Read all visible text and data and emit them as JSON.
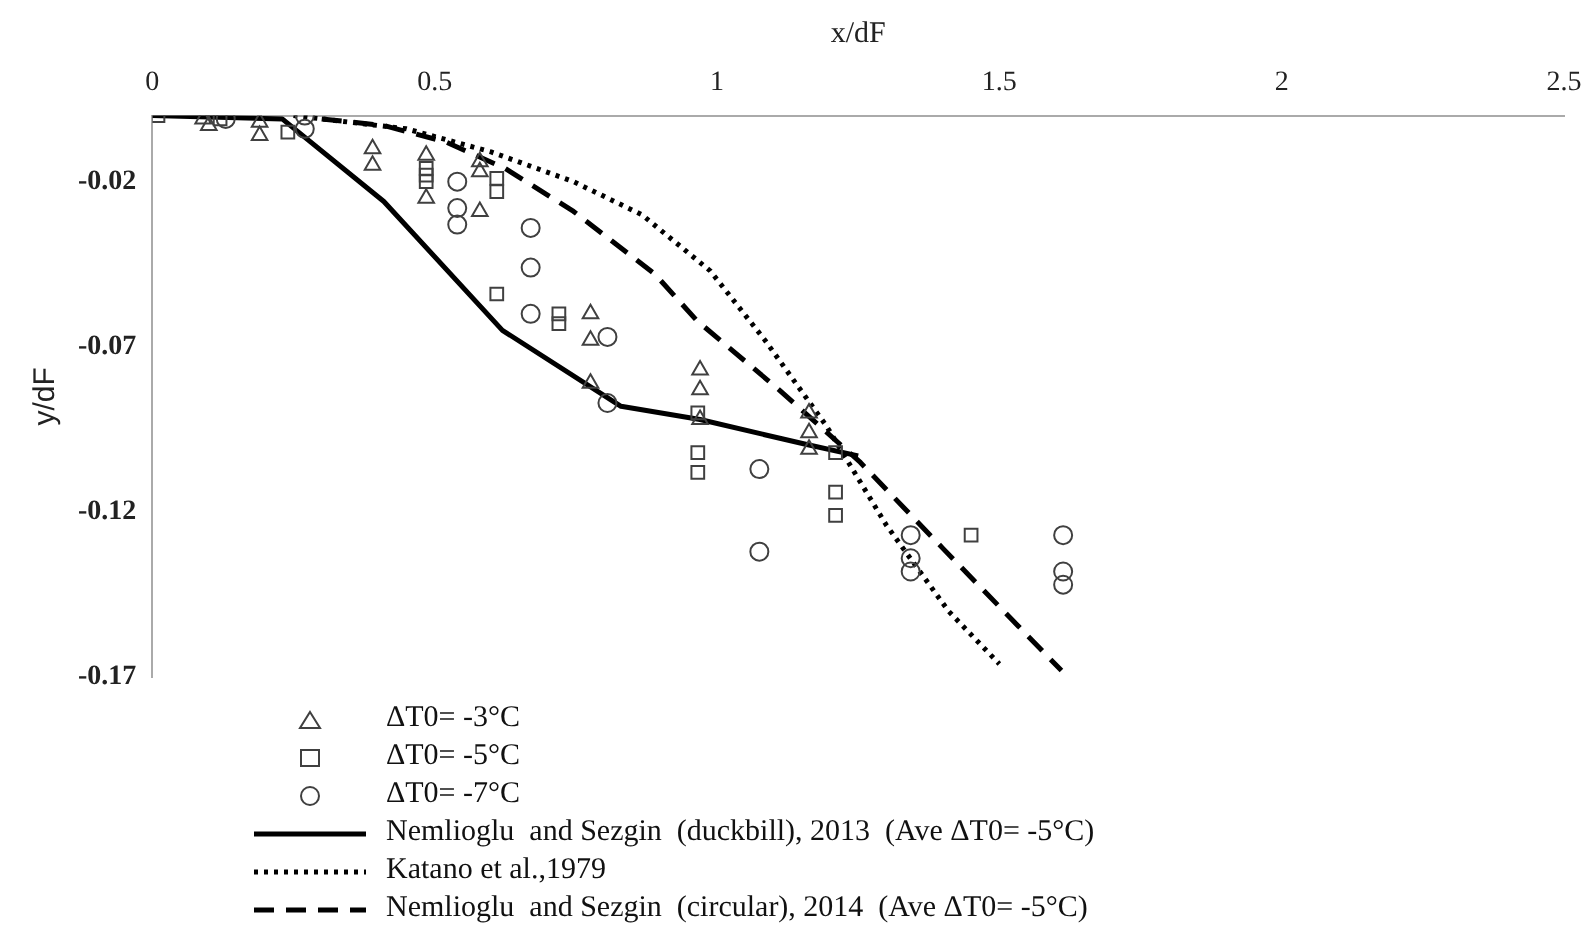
{
  "chart_data": {
    "type": "scatter",
    "xlabel": "x/dF",
    "ylabel": "y/dF",
    "xlim": [
      0,
      2.5
    ],
    "xticks": [
      0,
      0.5,
      1,
      1.5,
      2,
      2.5
    ],
    "ylim": [
      -0.17,
      0
    ],
    "yticks": [
      -0.02,
      -0.07,
      -0.12,
      -0.17
    ],
    "grid": false,
    "legend": "bottom left",
    "series": [
      {
        "name": "ΔT0= -3°C",
        "marker": "triangle",
        "color": "#404040",
        "x": [
          0.09,
          0.1,
          0.19,
          0.19,
          0.39,
          0.39,
          0.485,
          0.485,
          0.58,
          0.58,
          0.58,
          0.776,
          0.776,
          0.776,
          0.97,
          0.97,
          0.97,
          1.163,
          1.163,
          1.163
        ],
        "values": [
          -0.001,
          -0.003,
          -0.002,
          -0.006,
          -0.01,
          -0.015,
          -0.012,
          -0.025,
          -0.014,
          -0.017,
          -0.029,
          -0.06,
          -0.068,
          -0.081,
          -0.077,
          -0.083,
          -0.092,
          -0.09,
          -0.096,
          -0.101
        ]
      },
      {
        "name": "ΔT0= -5°C",
        "marker": "square",
        "color": "#404040",
        "x": [
          0.01,
          0.12,
          0.24,
          0.485,
          0.485,
          0.485,
          0.61,
          0.61,
          0.61,
          0.72,
          0.72,
          0.966,
          0.966,
          0.966,
          1.21,
          1.21,
          1.21,
          1.45
        ],
        "values": [
          0,
          -0.001,
          -0.005,
          -0.016,
          -0.018,
          -0.02,
          -0.019,
          -0.023,
          -0.054,
          -0.06,
          -0.063,
          -0.09,
          -0.102,
          -0.108,
          -0.102,
          -0.114,
          -0.121,
          -0.127
        ]
      },
      {
        "name": "ΔT0= -7°C",
        "marker": "circle",
        "color": "#404040",
        "x": [
          0.13,
          0.27,
          0.27,
          0.54,
          0.54,
          0.54,
          0.67,
          0.67,
          0.67,
          0.806,
          0.806,
          1.075,
          1.075,
          1.343,
          1.343,
          1.343,
          1.613,
          1.613,
          1.613
        ],
        "values": [
          -0.001,
          0,
          -0.004,
          -0.02,
          -0.028,
          -0.033,
          -0.034,
          -0.046,
          -0.06,
          -0.067,
          -0.087,
          -0.107,
          -0.132,
          -0.127,
          -0.134,
          -0.138,
          -0.127,
          -0.138,
          -0.142
        ]
      },
      {
        "name": "Nemlioglu  and Sezgin  (duckbill), 2013  (Ave ΔT0= -5°C)",
        "type": "line",
        "line_style": "solid",
        "marker": "none",
        "color": "#000000",
        "x": [
          0,
          0.23,
          0.41,
          0.62,
          0.83,
          0.97,
          1.157,
          1.25
        ],
        "values": [
          0,
          -0.001,
          -0.026,
          -0.065,
          -0.088,
          -0.092,
          -0.0995,
          -0.103
        ]
      },
      {
        "name": "Katano et al.,1979",
        "type": "line",
        "line_style": "dotted",
        "marker": "none",
        "color": "#000000",
        "x": [
          0.25,
          0.45,
          0.6,
          0.746,
          0.867,
          0.988,
          1.085,
          1.194,
          1.3,
          1.41,
          1.5
        ],
        "values": [
          0,
          -0.004,
          -0.011,
          -0.02,
          -0.03,
          -0.047,
          -0.068,
          -0.094,
          -0.124,
          -0.15,
          -0.166
        ]
      },
      {
        "name": "Nemlioglu  and Sezgin  (circular), 2014  (Ave ΔT0= -5°C)",
        "type": "line",
        "line_style": "dashed",
        "marker": "none",
        "color": "#000000",
        "x": [
          0.3,
          0.41,
          0.52,
          0.625,
          0.746,
          0.89,
          0.964,
          1.11,
          1.254,
          1.4,
          1.61
        ],
        "values": [
          -0.001,
          -0.003,
          -0.008,
          -0.016,
          -0.029,
          -0.048,
          -0.062,
          -0.083,
          -0.105,
          -0.131,
          -0.168
        ]
      }
    ]
  }
}
